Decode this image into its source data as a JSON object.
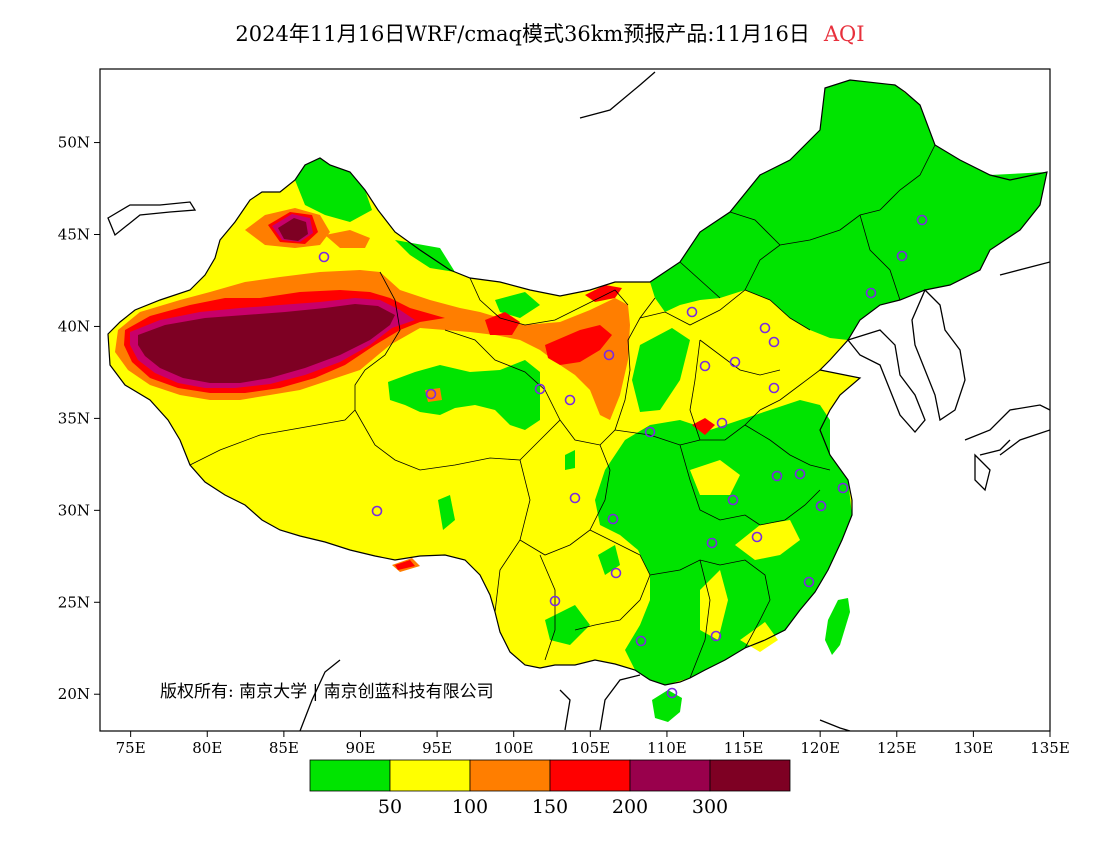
{
  "title": {
    "main": "2024年11月16日WRF/cmaq模式36km预报产品:11月16日",
    "variable": "AQI"
  },
  "copyright": "版权所有: 南京大学 | 南京创蓝科技有限公司",
  "axes": {
    "x_ticks": [
      "75E",
      "80E",
      "85E",
      "90E",
      "95E",
      "100E",
      "105E",
      "110E",
      "115E",
      "120E",
      "125E",
      "130E",
      "135E"
    ],
    "y_ticks": [
      "50N",
      "45N",
      "40N",
      "35N",
      "30N",
      "25N",
      "20N"
    ]
  },
  "colorbar": {
    "colors": [
      "#00e400",
      "#ffff00",
      "#ff7e00",
      "#ff0000",
      "#99004c",
      "#7e0023"
    ],
    "labels": [
      "50",
      "100",
      "150",
      "200",
      "300"
    ]
  },
  "map": {
    "region": "China",
    "lon_range": [
      73,
      135
    ],
    "lat_range": [
      18,
      54
    ],
    "colors": {
      "good": "#00e400",
      "moderate": "#ffff00",
      "sensitive": "#ff7e00",
      "unhealthy": "#ff0000",
      "very_unhealthy": "#c8006a",
      "hazardous": "#7e0023",
      "station": "#7a2be0"
    }
  }
}
